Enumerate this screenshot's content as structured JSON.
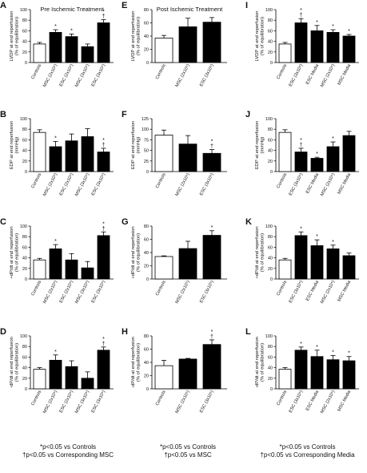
{
  "chart_data": [
    {
      "panel": "A",
      "type": "bar",
      "title": "Pre Ischemic Treatment",
      "ylabel": "LVDP at end reperfusion\n(% of equilibration)",
      "ylim": [
        0,
        100
      ],
      "yticks": [
        0,
        20,
        40,
        60,
        80,
        100
      ],
      "categories": [
        "Controls",
        "MSC (2x10⁶)",
        "ESC (2x10⁶)",
        "MSC (3x10⁶)",
        "ESC (3x10⁶)"
      ],
      "values": [
        35,
        57,
        49,
        30,
        75
      ],
      "errors": [
        3,
        5,
        5,
        5,
        6
      ],
      "marks": [
        "",
        "*",
        "*",
        "",
        "*\n†"
      ]
    },
    {
      "panel": "E",
      "type": "bar",
      "title": "Post Ischemic Treatment",
      "ylabel": "LVDP at end reperfusion\n(% of equilibration)",
      "ylim": [
        0,
        80
      ],
      "yticks": [
        0,
        20,
        40,
        60,
        80
      ],
      "categories": [
        "Controls",
        "MSC (2x10⁶)",
        "ESC (3x10⁶)"
      ],
      "values": [
        37,
        54,
        61
      ],
      "errors": [
        4,
        13,
        7
      ],
      "marks": [
        "",
        "",
        ""
      ]
    },
    {
      "panel": "I",
      "type": "bar",
      "title": "",
      "ylabel": "LVDP at end reperfusion\n(% of equilibration)",
      "ylim": [
        0,
        100
      ],
      "yticks": [
        0,
        20,
        40,
        60,
        80,
        100
      ],
      "categories": [
        "Controls",
        "ESC (3x10⁶)",
        "ESC Media",
        "MSC (2x10⁶)",
        "MSC Media"
      ],
      "values": [
        35,
        75,
        60,
        57,
        50
      ],
      "errors": [
        3,
        8,
        10,
        5,
        3
      ],
      "marks": [
        "",
        "*\n†",
        "*",
        "*",
        "*"
      ]
    },
    {
      "panel": "B",
      "type": "bar",
      "title": "",
      "ylabel": "EDP at end reperfusion\n(mmHg)",
      "ylim": [
        0,
        100
      ],
      "yticks": [
        0,
        20,
        40,
        60,
        80,
        100
      ],
      "categories": [
        "Controls",
        "MSC (2x10⁶)",
        "ESC (2x10⁶)",
        "MSC (3x10⁶)",
        "ESC (3x10⁶)"
      ],
      "values": [
        74,
        47,
        58,
        66,
        37
      ],
      "errors": [
        5,
        10,
        13,
        15,
        7
      ],
      "marks": [
        "",
        "*",
        "",
        "",
        "*\n†"
      ]
    },
    {
      "panel": "F",
      "type": "bar",
      "title": "",
      "ylabel": "EDP at end reperfusion\n(mmHg)",
      "ylim": [
        0,
        125
      ],
      "yticks": [
        0,
        25,
        50,
        75,
        100,
        125
      ],
      "categories": [
        "Controls",
        "MSC (2x10⁶)",
        "ESC (3x10⁶)"
      ],
      "values": [
        86,
        65,
        43
      ],
      "errors": [
        12,
        20,
        9
      ],
      "marks": [
        "",
        "",
        "*\n†"
      ]
    },
    {
      "panel": "J",
      "type": "bar",
      "title": "",
      "ylabel": "EDP at end reperfusion\n(mmHg)",
      "ylim": [
        0,
        100
      ],
      "yticks": [
        0,
        20,
        40,
        60,
        80,
        100
      ],
      "categories": [
        "Controls",
        "ESC (3x10⁶)",
        "ESC Media",
        "MSC (2x10⁶)",
        "MSC Media"
      ],
      "values": [
        74,
        37,
        25,
        47,
        68
      ],
      "errors": [
        5,
        7,
        2,
        9,
        8
      ],
      "marks": [
        "",
        "*\n†",
        "*",
        "*",
        ""
      ]
    },
    {
      "panel": "C",
      "type": "bar",
      "title": "",
      "ylabel": "+dP/dt at end reperfusion\n(% of equilibration)",
      "ylim": [
        0,
        100
      ],
      "yticks": [
        0,
        20,
        40,
        60,
        80,
        100
      ],
      "categories": [
        "Controls",
        "MSC (2x10⁶)",
        "ESC (2x10⁶)",
        "MSC (3x10⁶)",
        "ESC (3x10⁶)"
      ],
      "values": [
        36,
        57,
        36,
        21,
        82
      ],
      "errors": [
        3,
        8,
        12,
        12,
        7
      ],
      "marks": [
        "",
        "*",
        "",
        "",
        "*\n†"
      ]
    },
    {
      "panel": "G",
      "type": "bar",
      "title": "",
      "ylabel": "+dP/dt at end reperfusion\n(% of equilibration)",
      "ylim": [
        0,
        80
      ],
      "yticks": [
        0,
        20,
        40,
        60,
        80
      ],
      "categories": [
        "Controls",
        "MSC (2x10⁶)",
        "ESC (3x10⁶)"
      ],
      "values": [
        34,
        46,
        66
      ],
      "errors": [
        1,
        11,
        7
      ],
      "marks": [
        "",
        "",
        "*"
      ]
    },
    {
      "panel": "K",
      "type": "bar",
      "title": "",
      "ylabel": "+dP/dt at end reperfusion\n(% of equilibration)",
      "ylim": [
        0,
        100
      ],
      "yticks": [
        0,
        20,
        40,
        60,
        80,
        100
      ],
      "categories": [
        "Controls",
        "ESC (3x10⁶)",
        "ESC Media",
        "MSC (2x10⁶)",
        "MSC Media"
      ],
      "values": [
        36,
        82,
        63,
        57,
        44
      ],
      "errors": [
        3,
        7,
        11,
        7,
        5
      ],
      "marks": [
        "",
        "*",
        "*",
        "*",
        ""
      ]
    },
    {
      "panel": "D",
      "type": "bar",
      "title": "",
      "ylabel": "-dP/dt at end reperfusion\n(% of equilibration)",
      "ylim": [
        0,
        100
      ],
      "yticks": [
        0,
        20,
        40,
        60,
        80,
        100
      ],
      "categories": [
        "Controls",
        "MSC (2x10⁶)",
        "ESC (2x10⁶)",
        "MSC (3x10⁶)",
        "ESC (3x10⁶)"
      ],
      "values": [
        37,
        54,
        42,
        20,
        73
      ],
      "errors": [
        3,
        10,
        11,
        12,
        6
      ],
      "marks": [
        "",
        "*",
        "",
        "",
        "*\n†"
      ]
    },
    {
      "panel": "H",
      "type": "bar",
      "title": "",
      "ylabel": "-dP/dt at end reperfusion\n(% of equilibration)",
      "ylim": [
        0,
        80
      ],
      "yticks": [
        0,
        20,
        40,
        60,
        80
      ],
      "categories": [
        "Controls",
        "MSC (2x10⁶)",
        "ESC (3x10⁶)"
      ],
      "values": [
        35,
        45,
        67
      ],
      "errors": [
        8,
        1,
        7
      ],
      "marks": [
        "",
        "",
        "*\n†"
      ]
    },
    {
      "panel": "L",
      "type": "bar",
      "title": "",
      "ylabel": "-dP/dt at end reperfusion\n(% of equilibration)",
      "ylim": [
        0,
        100
      ],
      "yticks": [
        0,
        20,
        40,
        60,
        80,
        100
      ],
      "categories": [
        "Controls",
        "ESC (3x10⁶)",
        "ESC Media",
        "MSC (2x10⁶)",
        "MSC Media"
      ],
      "values": [
        37,
        73,
        61,
        55,
        53
      ],
      "errors": [
        3,
        6,
        12,
        8,
        8
      ],
      "marks": [
        "",
        "*",
        "*",
        "*",
        "*"
      ]
    }
  ],
  "footnotes": {
    "col1": {
      "line1": "*p<0.05 vs Controls",
      "line2": "†p<0.05 vs Corresponding MSC"
    },
    "col2": {
      "line1": "*p<0.05 vs Controls",
      "line2": "†p<0.05 vs MSC"
    },
    "col3": {
      "line1": "*p<0.05 vs Controls",
      "line2": "†p<0.05 vs Corresponding Media"
    }
  },
  "colors": {
    "control_bar": "#ffffff",
    "treatment_bar": "#000000",
    "axis": "#000000"
  }
}
